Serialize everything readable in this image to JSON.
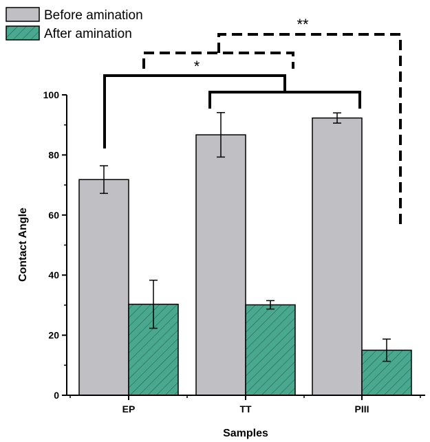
{
  "chart_data": {
    "type": "bar",
    "title": "",
    "xlabel": "Samples",
    "ylabel": "Contact Angle",
    "categories": [
      "EP",
      "TT",
      "PIII"
    ],
    "ylim": [
      0,
      100
    ],
    "yticks": [
      "0",
      "20",
      "40",
      "60",
      "80",
      "100"
    ],
    "grid": false,
    "legend_position": "top-left",
    "series": [
      {
        "name": "Before amination",
        "color": "#c0c0c4",
        "pattern": "solid",
        "values": [
          71.8,
          86.7,
          92.3
        ],
        "errors": [
          4.6,
          7.4,
          1.7
        ]
      },
      {
        "name": "After amination",
        "color": "#4aa88e",
        "pattern": "diagonal-hatch",
        "values": [
          30.3,
          30.1,
          15.0
        ],
        "errors": [
          8.0,
          1.4,
          3.7
        ]
      }
    ],
    "annotations": [
      {
        "label": "*",
        "style": "solid-and-dashed brackets",
        "between": [
          "EP",
          "TT",
          "PIII"
        ]
      },
      {
        "label": "**",
        "style": "dashed bracket",
        "between": [
          "EP/TT/PIII Before amination",
          "PIII After amination"
        ]
      }
    ]
  }
}
